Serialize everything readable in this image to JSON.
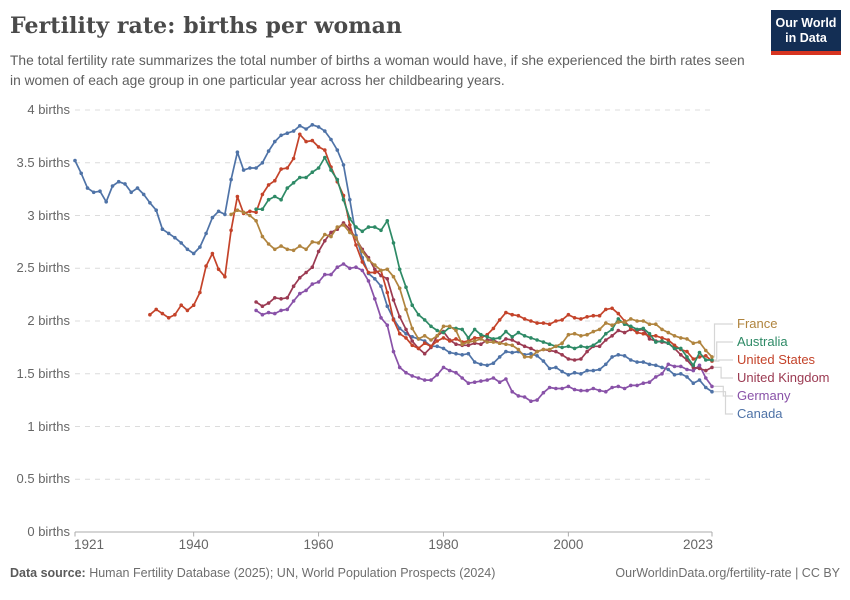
{
  "header": {
    "title": "Fertility rate: births per woman",
    "subtitle": "The total fertility rate summarizes the total number of births a woman would have, if she experienced the birth rates seen in women of each age group in one particular year across her childbearing years.",
    "logo_line1": "Our World",
    "logo_line2": "in Data",
    "logo_bg_color": "#132E54",
    "logo_stripe_color": "#D63420"
  },
  "footer": {
    "source_label": "Data source:",
    "source_text": " Human Fertility Database (2025); UN, World Population Prospects (2024)",
    "link_text": "OurWorldinData.org/fertility-rate | CC BY"
  },
  "chart_data": {
    "type": "line",
    "title": "Fertility rate: births per woman",
    "xlabel": "",
    "ylabel": "births per woman",
    "xlim": [
      1921,
      2023
    ],
    "ylim": [
      0,
      4
    ],
    "grid": "dashed-horizontal",
    "legend_position": "right-of-line-ends",
    "yticks": [
      {
        "value": 4,
        "label": "4 births"
      },
      {
        "value": 3.5,
        "label": "3.5 births"
      },
      {
        "value": 3,
        "label": "3 births"
      },
      {
        "value": 2.5,
        "label": "2.5 births"
      },
      {
        "value": 2,
        "label": "2 births"
      },
      {
        "value": 1.5,
        "label": "1.5 births"
      },
      {
        "value": 1,
        "label": "1 births"
      },
      {
        "value": 0.5,
        "label": "0.5 births"
      },
      {
        "value": 0,
        "label": "0 births"
      }
    ],
    "xticks": [
      {
        "year": 1921,
        "label": "1921"
      },
      {
        "year": 1940,
        "label": "1940"
      },
      {
        "year": 1960,
        "label": "1960"
      },
      {
        "year": 1980,
        "label": "1980"
      },
      {
        "year": 2000,
        "label": "2000"
      },
      {
        "year": 2023,
        "label": "2023"
      }
    ],
    "series": [
      {
        "name": "France",
        "color": "#B0843E",
        "start_year": 1946,
        "values": [
          3.01,
          3.05,
          3.03,
          3.0,
          2.95,
          2.8,
          2.73,
          2.68,
          2.71,
          2.68,
          2.67,
          2.71,
          2.68,
          2.75,
          2.74,
          2.82,
          2.8,
          2.89,
          2.91,
          2.84,
          2.79,
          2.66,
          2.58,
          2.53,
          2.48,
          2.49,
          2.42,
          2.31,
          2.11,
          1.93,
          1.83,
          1.86,
          1.82,
          1.86,
          1.95,
          1.95,
          1.91,
          1.78,
          1.8,
          1.81,
          1.83,
          1.8,
          1.8,
          1.79,
          1.78,
          1.77,
          1.73,
          1.66,
          1.66,
          1.71,
          1.73,
          1.73,
          1.76,
          1.79,
          1.87,
          1.88,
          1.86,
          1.87,
          1.9,
          1.92,
          1.98,
          1.96,
          1.99,
          1.99,
          2.02,
          2.0,
          2.0,
          1.97,
          1.97,
          1.92,
          1.89,
          1.86,
          1.84,
          1.83,
          1.79,
          1.8,
          1.72,
          1.66
        ]
      },
      {
        "name": "Australia",
        "color": "#2E8A66",
        "start_year": 1950,
        "values": [
          3.06,
          3.06,
          3.15,
          3.18,
          3.15,
          3.26,
          3.31,
          3.36,
          3.36,
          3.41,
          3.45,
          3.55,
          3.43,
          3.34,
          3.15,
          2.97,
          2.89,
          2.85,
          2.89,
          2.89,
          2.86,
          2.95,
          2.74,
          2.49,
          2.32,
          2.15,
          2.06,
          2.01,
          1.95,
          1.91,
          1.89,
          1.94,
          1.93,
          1.92,
          1.84,
          1.92,
          1.87,
          1.85,
          1.83,
          1.84,
          1.9,
          1.85,
          1.89,
          1.86,
          1.84,
          1.82,
          1.8,
          1.78,
          1.76,
          1.75,
          1.76,
          1.74,
          1.76,
          1.75,
          1.77,
          1.81,
          1.88,
          1.92,
          2.02,
          1.97,
          1.95,
          1.92,
          1.93,
          1.88,
          1.8,
          1.81,
          1.79,
          1.74,
          1.74,
          1.66,
          1.58,
          1.7,
          1.63,
          1.63
        ]
      },
      {
        "name": "United States",
        "color": "#C4432A",
        "start_year": 1933,
        "values": [
          2.06,
          2.11,
          2.07,
          2.03,
          2.06,
          2.15,
          2.1,
          2.15,
          2.27,
          2.52,
          2.64,
          2.49,
          2.42,
          2.86,
          3.18,
          3.02,
          3.04,
          3.03,
          3.2,
          3.29,
          3.33,
          3.44,
          3.45,
          3.54,
          3.77,
          3.7,
          3.71,
          3.65,
          3.62,
          3.46,
          3.32,
          3.19,
          2.91,
          2.72,
          2.56,
          2.46,
          2.46,
          2.48,
          2.27,
          2.01,
          1.88,
          1.84,
          1.77,
          1.74,
          1.79,
          1.76,
          1.81,
          1.84,
          1.81,
          1.83,
          1.8,
          1.81,
          1.84,
          1.84,
          1.87,
          1.93,
          2.01,
          2.08,
          2.06,
          2.05,
          2.02,
          2.0,
          1.98,
          1.98,
          1.97,
          2.0,
          2.01,
          2.06,
          2.03,
          2.02,
          2.04,
          2.05,
          2.05,
          2.11,
          2.12,
          2.07,
          2.0,
          1.93,
          1.89,
          1.88,
          1.86,
          1.86,
          1.84,
          1.82,
          1.77,
          1.73,
          1.71,
          1.64,
          1.66,
          1.67,
          1.62
        ]
      },
      {
        "name": "United Kingdom",
        "color": "#9B3A52",
        "start_year": 1950,
        "values": [
          2.18,
          2.14,
          2.17,
          2.22,
          2.21,
          2.22,
          2.33,
          2.41,
          2.46,
          2.51,
          2.66,
          2.76,
          2.84,
          2.87,
          2.93,
          2.87,
          2.78,
          2.68,
          2.6,
          2.49,
          2.43,
          2.4,
          2.2,
          2.04,
          1.92,
          1.81,
          1.74,
          1.69,
          1.75,
          1.86,
          1.9,
          1.82,
          1.78,
          1.77,
          1.77,
          1.79,
          1.78,
          1.82,
          1.82,
          1.79,
          1.83,
          1.82,
          1.79,
          1.76,
          1.74,
          1.71,
          1.73,
          1.72,
          1.71,
          1.68,
          1.64,
          1.63,
          1.64,
          1.71,
          1.76,
          1.76,
          1.82,
          1.86,
          1.91,
          1.89,
          1.92,
          1.91,
          1.92,
          1.83,
          1.81,
          1.8,
          1.79,
          1.74,
          1.68,
          1.63,
          1.56,
          1.55,
          1.53,
          1.56
        ]
      },
      {
        "name": "Germany",
        "color": "#8952A8",
        "start_year": 1950,
        "values": [
          2.1,
          2.06,
          2.08,
          2.07,
          2.1,
          2.11,
          2.19,
          2.26,
          2.29,
          2.35,
          2.37,
          2.44,
          2.44,
          2.51,
          2.54,
          2.5,
          2.51,
          2.48,
          2.38,
          2.21,
          2.03,
          1.96,
          1.71,
          1.56,
          1.51,
          1.48,
          1.46,
          1.44,
          1.44,
          1.49,
          1.56,
          1.53,
          1.51,
          1.46,
          1.41,
          1.42,
          1.43,
          1.44,
          1.46,
          1.42,
          1.45,
          1.33,
          1.29,
          1.28,
          1.24,
          1.25,
          1.32,
          1.37,
          1.36,
          1.36,
          1.38,
          1.35,
          1.34,
          1.34,
          1.36,
          1.34,
          1.33,
          1.37,
          1.38,
          1.36,
          1.39,
          1.39,
          1.41,
          1.42,
          1.47,
          1.5,
          1.59,
          1.57,
          1.57,
          1.54,
          1.53,
          1.58,
          1.46,
          1.38
        ]
      },
      {
        "name": "Canada",
        "color": "#4F73A7",
        "start_year": 1921,
        "values": [
          3.52,
          3.4,
          3.26,
          3.22,
          3.23,
          3.13,
          3.28,
          3.32,
          3.3,
          3.22,
          3.26,
          3.2,
          3.12,
          3.05,
          2.87,
          2.83,
          2.79,
          2.74,
          2.68,
          2.64,
          2.7,
          2.83,
          2.98,
          3.04,
          3.01,
          3.34,
          3.6,
          3.43,
          3.45,
          3.45,
          3.5,
          3.61,
          3.7,
          3.76,
          3.78,
          3.8,
          3.85,
          3.82,
          3.86,
          3.84,
          3.8,
          3.72,
          3.62,
          3.48,
          3.15,
          2.81,
          2.6,
          2.45,
          2.4,
          2.33,
          2.14,
          2.02,
          1.93,
          1.88,
          1.85,
          1.83,
          1.81,
          1.76,
          1.76,
          1.74,
          1.7,
          1.69,
          1.68,
          1.69,
          1.61,
          1.59,
          1.58,
          1.6,
          1.66,
          1.71,
          1.7,
          1.71,
          1.68,
          1.69,
          1.67,
          1.62,
          1.55,
          1.56,
          1.52,
          1.49,
          1.51,
          1.5,
          1.53,
          1.53,
          1.54,
          1.59,
          1.66,
          1.68,
          1.67,
          1.63,
          1.61,
          1.61,
          1.59,
          1.58,
          1.56,
          1.54,
          1.49,
          1.5,
          1.47,
          1.41,
          1.44,
          1.37,
          1.33
        ]
      }
    ],
    "style": {
      "grid_color": "#DCDCDC",
      "axis_color": "#ABABAB",
      "tick_text_color": "#666666",
      "connector_color": "#D6D6D6"
    }
  }
}
